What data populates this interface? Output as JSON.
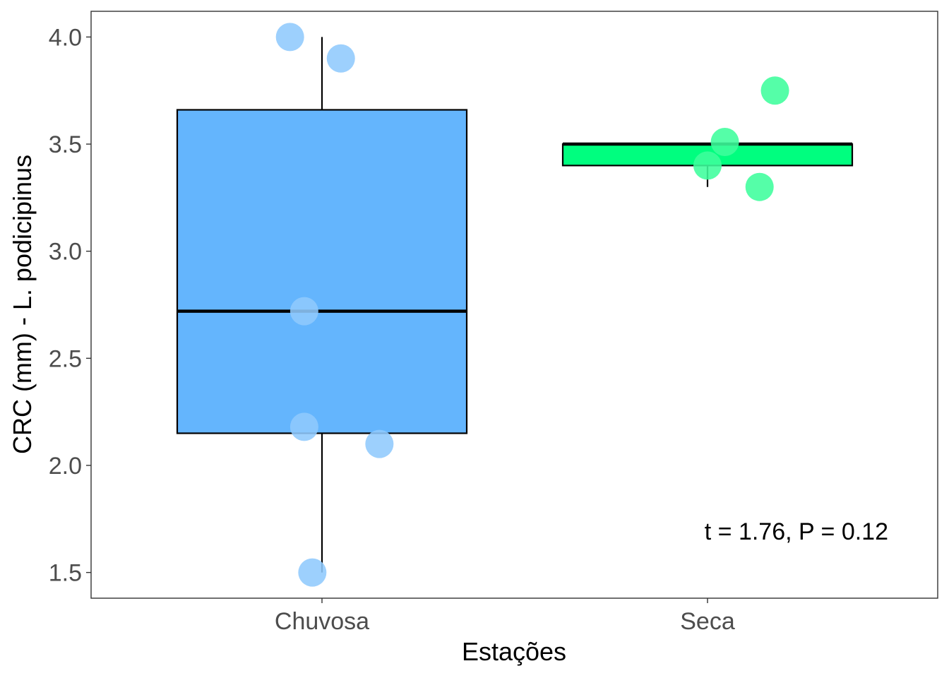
{
  "chart_data": {
    "type": "box",
    "categories": [
      "Chuvosa",
      "Seca"
    ],
    "xlabel": "Estações",
    "ylabel": "CRC (mm) - L. podicipinus",
    "ylim": [
      1.38,
      4.12
    ],
    "yticks": [
      1.5,
      2.0,
      2.5,
      3.0,
      3.5,
      4.0
    ],
    "ytick_labels": [
      "1.5",
      "2.0",
      "2.5",
      "3.0",
      "3.5",
      "4.0"
    ],
    "grid": false,
    "boxes": [
      {
        "category": "Chuvosa",
        "color": "#64b5fd",
        "point_color": "#90cafd",
        "whisker_low": 1.5,
        "q1": 2.15,
        "median": 2.72,
        "q3": 3.66,
        "whisker_high": 4.0
      },
      {
        "category": "Seca",
        "color": "#00fe7f",
        "point_color": "#3dfe9c",
        "whisker_low": 3.3,
        "q1": 3.4,
        "median": 3.5,
        "q3": 3.5,
        "whisker_high": 3.5
      }
    ],
    "points": [
      {
        "category": "Chuvosa",
        "jitter": -0.083,
        "y": 4.0
      },
      {
        "category": "Chuvosa",
        "jitter": 0.049,
        "y": 3.9
      },
      {
        "category": "Chuvosa",
        "jitter": -0.046,
        "y": 2.72
      },
      {
        "category": "Chuvosa",
        "jitter": -0.046,
        "y": 2.18
      },
      {
        "category": "Chuvosa",
        "jitter": 0.149,
        "y": 2.1
      },
      {
        "category": "Chuvosa",
        "jitter": -0.025,
        "y": 1.5
      },
      {
        "category": "Seca",
        "jitter": 0.175,
        "y": 3.75
      },
      {
        "category": "Seca",
        "jitter": 0.045,
        "y": 3.51
      },
      {
        "category": "Seca",
        "jitter": 0.0,
        "y": 3.4
      },
      {
        "category": "Seca",
        "jitter": 0.135,
        "y": 3.3
      }
    ],
    "annotation": "t = 1.76, P = 0.12",
    "annotation_position": "bottom-right"
  }
}
